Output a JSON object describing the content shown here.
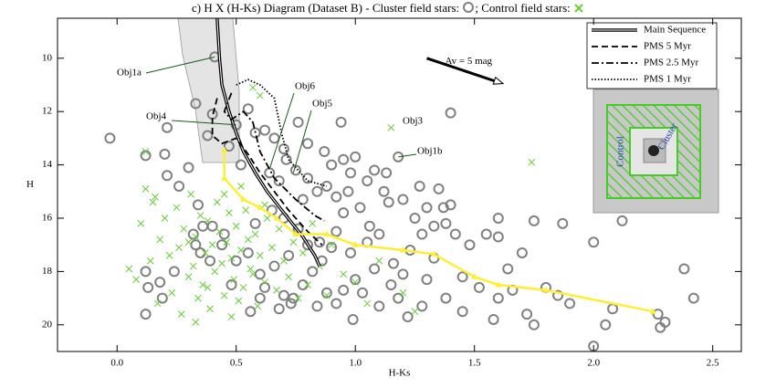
{
  "chart_data": {
    "type": "scatter",
    "title": "c) H X (H-Ks) Diagram (Dataset B) - Cluster field stars:",
    "title_2": "; Control field stars:",
    "x_label": "H-Ks",
    "y_label": "H",
    "xlim": [
      -0.25,
      2.62
    ],
    "ylim": [
      21,
      8.5
    ],
    "xticks": [
      {
        "value": 0,
        "label": "0.0"
      },
      0.5,
      {
        "value": 1,
        "label": "1.0"
      },
      1.5,
      {
        "value": 2,
        "label": "2.0"
      },
      2.5
    ],
    "yticks": [
      10,
      12,
      14,
      16,
      18,
      20
    ],
    "series": [
      {
        "type": "scatter",
        "marker": "circle",
        "color": "#808080",
        "x": [
          0.41,
          0.5,
          1.4,
          1.18,
          -0.03,
          0.12,
          0.2,
          0.21,
          0.33,
          0.12,
          0.13,
          0.18,
          0.19,
          0.12,
          0.24,
          0.21,
          0.26,
          0.3,
          0.34,
          0.36,
          0.4,
          0.35,
          0.33,
          0.32,
          0.39,
          0.44,
          1.6,
          1.7,
          1.75,
          1.87,
          2.0,
          2.12,
          1.8,
          1.85,
          1.9,
          1.6,
          1.45,
          1.58,
          1.75,
          2.05,
          2.08,
          2.27,
          2.28,
          2.38,
          2.42,
          2.0,
          1.2,
          1.3,
          1.28,
          1.48,
          1.52,
          1.64,
          1.66,
          1.55,
          1.4,
          1.38,
          1.42,
          1.33,
          1.37,
          1.3,
          1.25,
          1.12,
          1.27,
          1.14,
          1.02,
          0.95,
          0.92,
          1.05,
          0.98,
          1.08,
          0.86,
          0.82,
          0.78,
          0.74,
          0.88,
          0.92,
          0.95,
          0.72,
          0.66,
          0.6,
          0.62,
          0.7,
          0.68,
          0.84,
          0.99,
          1.0,
          1.15,
          1.1,
          1.18,
          1.22,
          0.64,
          0.68,
          0.71,
          0.75,
          0.8,
          0.84,
          0.78,
          0.88,
          0.92,
          0.9,
          0.87,
          0.95,
          0.98,
          1.0,
          1.05,
          1.08,
          1.13,
          0.94,
          0.76,
          0.66,
          0.62,
          0.7,
          0.8,
          1.06,
          1.1,
          0.76,
          0.8,
          0.7,
          0.65,
          0.58,
          0.55,
          0.5,
          0.48,
          0.56,
          0.45,
          1.23,
          1.33,
          1.45,
          1.38,
          1.72,
          2.3,
          1.6,
          1.28,
          1.35,
          0.4,
          0.38,
          0.55,
          0.58,
          0.47,
          0.52,
          0.9,
          1.03,
          0.85,
          0.73,
          1.16,
          0.97,
          1.2,
          0.6
        ],
        "values": [
          9.95,
          12.5,
          12.05,
          13.7,
          13.0,
          13.65,
          13.6,
          12.6,
          11.7,
          18.0,
          18.6,
          18.4,
          19.0,
          19.6,
          18.0,
          14.4,
          14.8,
          14.1,
          15.5,
          16.3,
          16.3,
          17.3,
          17.0,
          16.6,
          17.6,
          17.0,
          16.7,
          17.3,
          16.1,
          16.2,
          16.9,
          16.1,
          18.6,
          18.9,
          19.2,
          19.0,
          19.5,
          19.8,
          20.0,
          20.0,
          19.4,
          19.6,
          20.1,
          17.9,
          19.0,
          20.8,
          18.1,
          18.3,
          19.3,
          17.0,
          18.6,
          17.9,
          18.7,
          16.6,
          15.5,
          16.2,
          16.6,
          16.3,
          15.6,
          15.6,
          16.0,
          15.0,
          14.8,
          15.4,
          15.6,
          15.8,
          16.5,
          16.9,
          17.3,
          17.9,
          17.6,
          18.0,
          18.5,
          19.0,
          18.8,
          19.2,
          18.7,
          17.4,
          17.8,
          18.1,
          18.6,
          18.9,
          19.4,
          19.3,
          19.8,
          18.3,
          18.5,
          19.3,
          19.0,
          19.7,
          14.3,
          14.6,
          13.8,
          14.2,
          14.5,
          15.0,
          15.3,
          14.8,
          15.2,
          14.0,
          13.5,
          13.8,
          14.3,
          13.7,
          14.6,
          14.2,
          14.3,
          12.4,
          12.4,
          13.0,
          12.7,
          13.4,
          13.2,
          16.3,
          16.6,
          16.4,
          17.0,
          16.0,
          15.7,
          16.2,
          17.3,
          17.6,
          18.5,
          19.5,
          16.6,
          17.2,
          17.5,
          18.2,
          19.0,
          19.6,
          19.9,
          16.0,
          16.6,
          14.9,
          12.1,
          12.9,
          11.9,
          12.8,
          13.3,
          14.0,
          17.1,
          18.8,
          16.9,
          19.2,
          17.7,
          15.0,
          15.3,
          19.0
        ]
      },
      {
        "type": "scatter",
        "marker": "x",
        "color": "#66cc33",
        "x": [
          0.05,
          0.08,
          0.1,
          0.12,
          0.14,
          0.15,
          0.17,
          0.18,
          0.2,
          0.22,
          0.23,
          0.25,
          0.26,
          0.27,
          0.28,
          0.3,
          0.31,
          0.32,
          0.33,
          0.34,
          0.35,
          0.36,
          0.37,
          0.38,
          0.39,
          0.4,
          0.41,
          0.42,
          0.43,
          0.44,
          0.45,
          0.46,
          0.47,
          0.48,
          0.49,
          0.5,
          0.51,
          0.52,
          0.53,
          0.54,
          0.55,
          0.56,
          0.57,
          0.58,
          0.59,
          0.6,
          0.62,
          0.63,
          0.65,
          0.67,
          0.68,
          0.7,
          0.72,
          0.74,
          0.76,
          0.78,
          0.8,
          0.82,
          0.85,
          0.88,
          0.9,
          0.95,
          1.0,
          1.05,
          1.1,
          1.2,
          1.25,
          0.12,
          0.16,
          0.57,
          0.6,
          1.15,
          1.74,
          0.3,
          0.45,
          0.52,
          0.38,
          0.62,
          0.48,
          0.33
        ],
        "values": [
          17.9,
          18.3,
          16.2,
          13.5,
          17.6,
          15.4,
          19.2,
          16.8,
          16.0,
          17.4,
          18.8,
          15.6,
          17.1,
          19.6,
          16.4,
          18.2,
          15.1,
          17.8,
          16.7,
          19.0,
          15.9,
          18.5,
          17.3,
          16.1,
          19.4,
          17.0,
          18.0,
          15.4,
          16.5,
          17.7,
          18.9,
          16.9,
          15.8,
          17.5,
          18.3,
          16.3,
          19.1,
          17.2,
          18.6,
          15.7,
          16.8,
          17.9,
          18.1,
          16.6,
          19.3,
          17.4,
          18.4,
          16.0,
          17.1,
          18.7,
          16.4,
          17.6,
          18.2,
          16.9,
          19.0,
          17.3,
          18.5,
          16.2,
          17.8,
          18.9,
          17.0,
          18.1,
          18.4,
          19.2,
          17.6,
          18.8,
          19.5,
          14.9,
          15.2,
          11.1,
          11.4,
          12.6,
          13.9,
          16.9,
          15.1,
          14.8,
          18.6,
          15.5,
          19.7,
          19.9
        ]
      },
      {
        "type": "line",
        "name": "Main Sequence",
        "dash": "double",
        "color": "#000000",
        "x": [
          0.42,
          0.43,
          0.44,
          0.47,
          0.5,
          0.53,
          0.58,
          0.63,
          0.7,
          0.78,
          0.83,
          0.85
        ],
        "values": [
          8.5,
          10,
          11,
          12,
          12.8,
          13.5,
          14.3,
          15.0,
          15.8,
          16.7,
          17.4,
          17.8
        ]
      },
      {
        "type": "line",
        "name": "PMS 5 Myr",
        "dash": "dashed",
        "color": "#000000",
        "x": [
          0.42,
          0.4,
          0.4,
          0.44,
          0.5,
          0.55,
          0.6,
          0.66,
          0.72,
          0.8,
          0.86
        ],
        "values": [
          11.5,
          12.2,
          12.9,
          13.2,
          13.0,
          13.6,
          14.3,
          15.0,
          15.7,
          16.5,
          17.0
        ]
      },
      {
        "type": "line",
        "name": "PMS 2.5 Myr",
        "dash": "dashdot",
        "color": "#000000",
        "x": [
          0.48,
          0.45,
          0.48,
          0.53,
          0.57,
          0.6,
          0.66,
          0.75,
          0.83,
          0.87
        ],
        "values": [
          11.3,
          12.0,
          12.3,
          12.0,
          12.4,
          13.5,
          14.5,
          15.3,
          15.9,
          16.1
        ]
      },
      {
        "type": "line",
        "name": "PMS 1 Myr",
        "dash": "dotted",
        "color": "#000000",
        "x": [
          0.5,
          0.55,
          0.6,
          0.66,
          0.69,
          0.72,
          0.8,
          0.88
        ],
        "values": [
          11.0,
          10.8,
          11.0,
          11.5,
          12.8,
          13.8,
          14.6,
          14.8
        ]
      },
      {
        "type": "line",
        "dash": "solid",
        "color": "#ffee33",
        "markers": true,
        "x": [
          0.45,
          0.45,
          0.53,
          0.6,
          0.67,
          0.75,
          0.88,
          1.0,
          1.2,
          1.33,
          1.5,
          1.6,
          1.8,
          2.25
        ],
        "values": [
          13.45,
          14.5,
          15.3,
          15.6,
          16.0,
          16.6,
          16.6,
          17.0,
          17.2,
          17.35,
          18.2,
          18.5,
          18.7,
          19.5
        ]
      }
    ],
    "vector": {
      "label": "Av = 5 mag",
      "x": [
        1.3,
        1.62
      ],
      "y": [
        10.0,
        10.95
      ]
    },
    "annotations": [
      {
        "text": "Obj1a",
        "x": 0.41,
        "y": 9.95
      },
      {
        "text": "Obj4",
        "x": 0.5,
        "y": 12.5
      },
      {
        "text": "Obj6",
        "x": 0.64,
        "y": 14.15
      },
      {
        "text": "Obj5",
        "x": 0.74,
        "y": 14.3
      },
      {
        "text": "Obj3",
        "x": 1.4,
        "y": 12.05
      },
      {
        "text": "Obj1b",
        "x": 1.18,
        "y": 13.7
      }
    ],
    "inset": {
      "labels": [
        "Control",
        "Cluster"
      ]
    }
  }
}
